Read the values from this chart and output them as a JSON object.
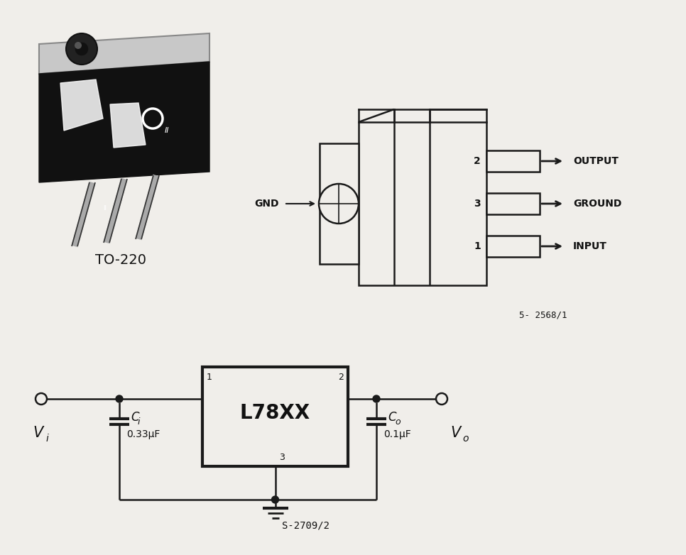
{
  "bg_color": "#f0eeea",
  "line_color": "#1a1a1a",
  "text_color": "#111111",
  "to220_label": "TO-220",
  "ic_label": "L78XX",
  "output_label": "OUTPUT",
  "ground_label": "GROUND",
  "input_label": "INPUT",
  "gnd_label": "GND",
  "ref1_label": "5- 2568/1",
  "ref2_label": "S-2709/2",
  "vi_label": "V",
  "vi_sub": "i",
  "vo_label": "V",
  "vo_sub": "o",
  "ci_label": "C",
  "ci_sub": "i",
  "co_label": "C",
  "co_sub": "o",
  "ci_val": "0.33μF",
  "co_val": "0.1μF"
}
